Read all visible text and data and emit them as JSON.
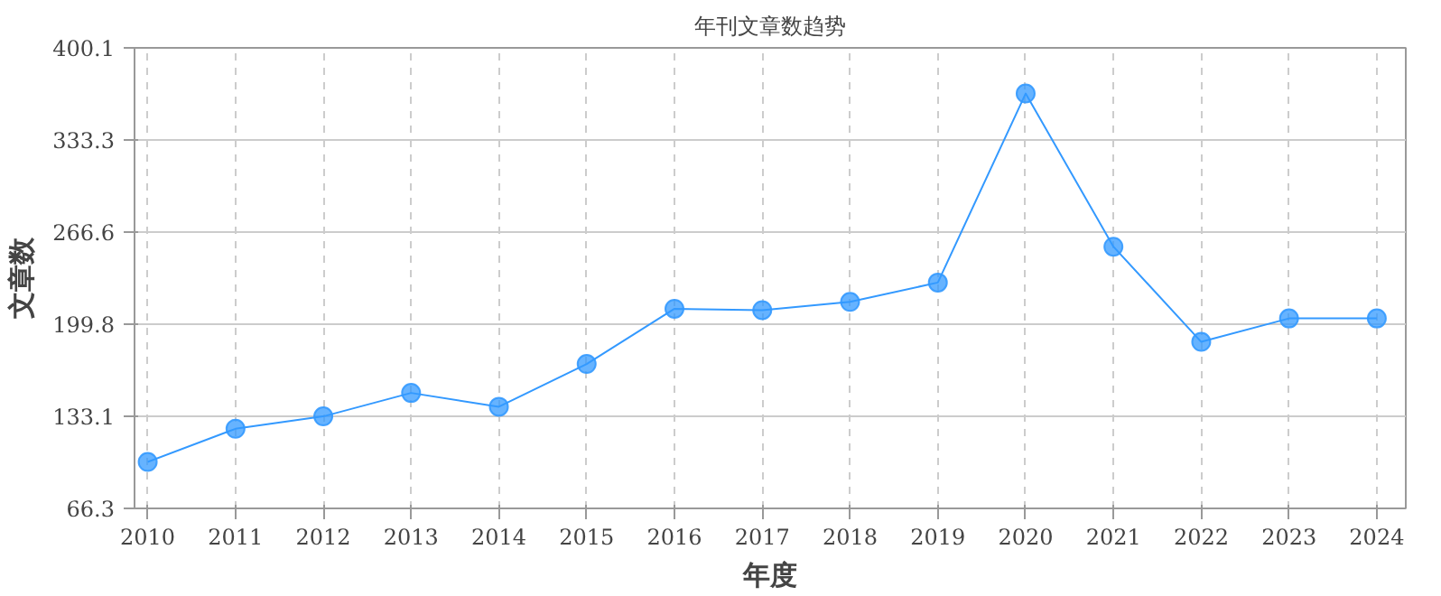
{
  "chart_data": {
    "type": "line",
    "title": "年刊文章数趋势",
    "xlabel": "年度",
    "ylabel": "文章数",
    "categories": [
      "2010",
      "2011",
      "2012",
      "2013",
      "2014",
      "2015",
      "2016",
      "2017",
      "2018",
      "2019",
      "2020",
      "2021",
      "2022",
      "2023",
      "2024"
    ],
    "series": [
      {
        "color": "#3399ff",
        "values": [
          100,
          124,
          133,
          150,
          140,
          171,
          211,
          210,
          216,
          230,
          367,
          256,
          187,
          204,
          204
        ]
      }
    ],
    "ylim": [
      66.3,
      400.1
    ],
    "yticks": [
      66.3,
      133.1,
      199.8,
      266.6,
      333.3,
      400.1
    ],
    "grid": true,
    "marker": "circle",
    "line_style": "solid"
  }
}
